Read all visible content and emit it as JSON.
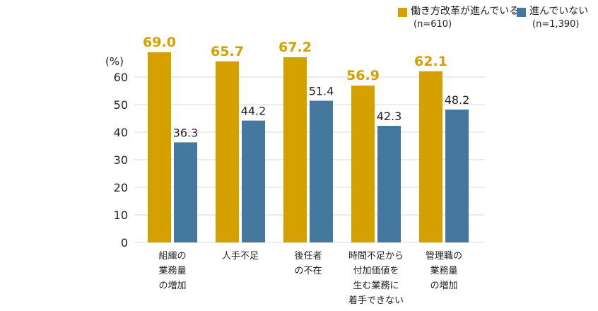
{
  "chart_data": {
    "type": "bar",
    "y_unit_label": "(%)",
    "ylim": [
      0,
      70
    ],
    "yticks": [
      0,
      10,
      20,
      30,
      40,
      50,
      60
    ],
    "grid": true,
    "legend_placement": "top-right",
    "categories": [
      [
        "組織の",
        "業務量",
        "の増加"
      ],
      [
        "人手不足"
      ],
      [
        "後任者",
        "の不在"
      ],
      [
        "時間不足から",
        "付加価値を",
        "生む業務に",
        "着手できない"
      ],
      [
        "管理職の",
        "業務量",
        "の増加"
      ]
    ],
    "series": [
      {
        "name": "働き方改革が進んでいる",
        "n_label": "(n=610)",
        "color": "#d4a100",
        "label_color": "#d4a100",
        "values": [
          69.0,
          65.7,
          67.2,
          56.9,
          62.1
        ]
      },
      {
        "name": "進んでいない",
        "n_label": "(n=1,390)",
        "color": "#44789e",
        "label_color": "#222222",
        "values": [
          36.3,
          44.2,
          51.4,
          42.3,
          48.2
        ]
      }
    ]
  }
}
